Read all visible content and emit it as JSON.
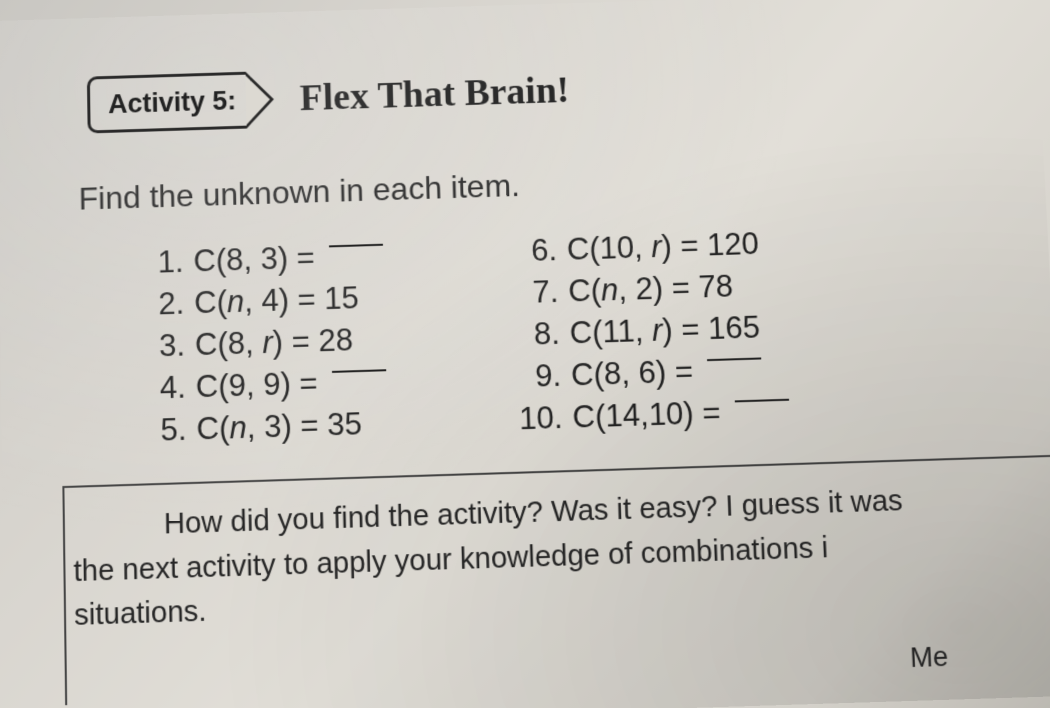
{
  "header": {
    "badge_label": "Activity 5:",
    "title": "Flex That Brain!"
  },
  "instruction": "Find the unknown in each item.",
  "items_left": [
    {
      "n": "1.",
      "expr_pre": "C(8, 3) = ",
      "expr_var": "",
      "expr_post": "",
      "blank": true
    },
    {
      "n": "2.",
      "expr_pre": "C(",
      "expr_var": "n",
      "expr_post": ", 4) = 15",
      "blank": false
    },
    {
      "n": "3.",
      "expr_pre": "C(8, ",
      "expr_var": "r",
      "expr_post": ") = 28",
      "blank": false
    },
    {
      "n": "4.",
      "expr_pre": "C(9, 9) = ",
      "expr_var": "",
      "expr_post": "",
      "blank": true
    },
    {
      "n": "5.",
      "expr_pre": "C(",
      "expr_var": "n",
      "expr_post": ", 3) = 35",
      "blank": false
    }
  ],
  "items_right": [
    {
      "n": "6.",
      "expr_pre": "C(10, ",
      "expr_var": "r",
      "expr_post": ")  = 120",
      "blank": false
    },
    {
      "n": "7.",
      "expr_pre": "C(",
      "expr_var": "n",
      "expr_post": ", 2)   = 78",
      "blank": false
    },
    {
      "n": "8.",
      "expr_pre": "C(11, ",
      "expr_var": "r",
      "expr_post": ")  = 165",
      "blank": false
    },
    {
      "n": "9.",
      "expr_pre": "C(8, 6)   = ",
      "expr_var": "",
      "expr_post": "",
      "blank": true
    },
    {
      "n": "10.",
      "expr_pre": "C(14,10) = ",
      "expr_var": "",
      "expr_post": "",
      "blank": true
    }
  ],
  "footer": {
    "line1": "How did you find the activity? Was it easy? I guess it was",
    "line2": "the next activity to apply your knowledge of combinations i",
    "line3": "situations.",
    "tail": "Me"
  },
  "style": {
    "badge_border_color": "#2a2a2a",
    "text_color": "#1a1a1a",
    "page_bg_from": "#c9c7c2",
    "page_bg_to": "#bcb9b2",
    "badge_fontsize": 27,
    "title_fontsize": 38,
    "instruction_fontsize": 32,
    "item_fontsize": 31,
    "footer_fontsize": 29
  }
}
